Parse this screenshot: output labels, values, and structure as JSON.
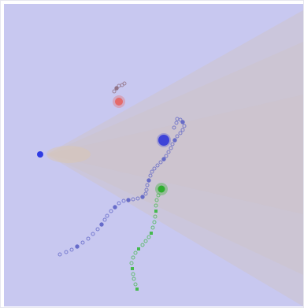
{
  "scene": {
    "background_color": "#c8c8f0",
    "cone_color": "#cfc3c3",
    "glow_color": "#d8c6b6",
    "agent_color": "#2f3be3",
    "targets": [
      {
        "name": "red-target",
        "color": "#e46a6a"
      },
      {
        "name": "blue-target",
        "color": "#3d43d8"
      },
      {
        "name": "green-target",
        "color": "#2fae2f"
      }
    ],
    "trails": [
      {
        "name": "red-trail",
        "color": "#8d6c7d"
      },
      {
        "name": "blue-trail",
        "color": "#5d63c6"
      },
      {
        "name": "green-trail",
        "color": "#46b94f"
      }
    ]
  }
}
